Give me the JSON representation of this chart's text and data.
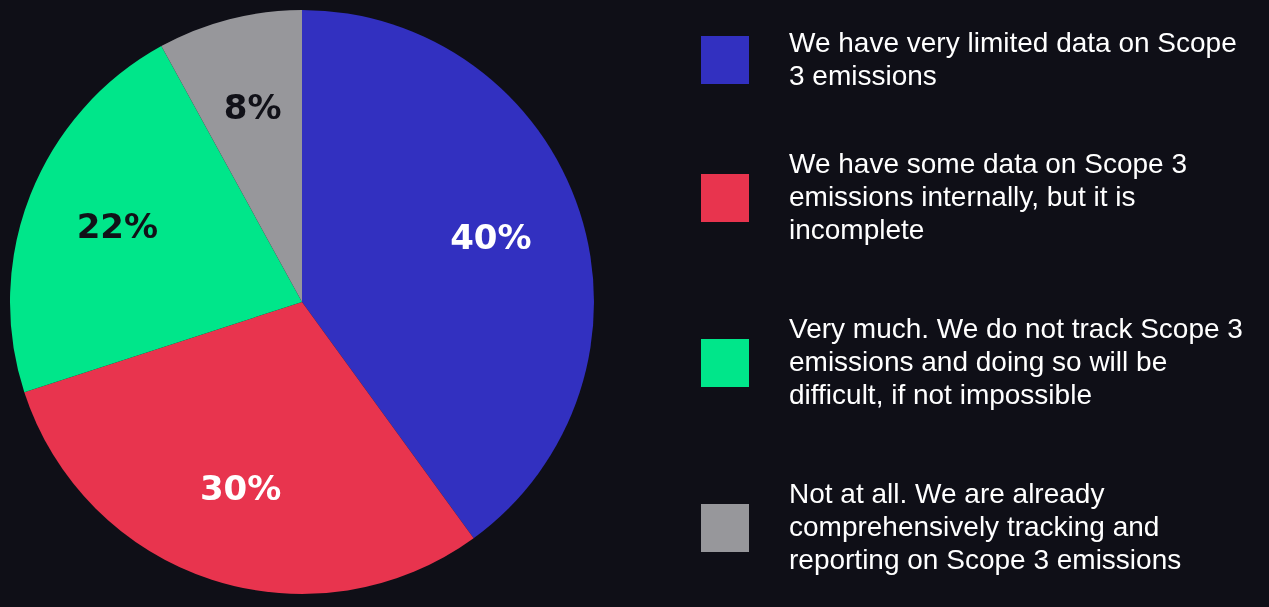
{
  "chart_data": {
    "type": "pie",
    "categories": [
      "We have very limited data on Scope 3 emissions",
      "We have some data on Scope 3 emissions internally, but it is incomplete",
      "Very much. We do not track Scope 3 emissions and doing so will be difficult, if not impossible",
      "Not at all. We are already comprehensively tracking and reporting on Scope 3 emissions"
    ],
    "values": [
      40,
      30,
      22,
      8
    ],
    "colors": [
      "#3230c0",
      "#e8344e",
      "#00e68a",
      "#97979b"
    ],
    "value_labels": [
      "40%",
      "30%",
      "22%",
      "8%"
    ],
    "legend": "right"
  }
}
